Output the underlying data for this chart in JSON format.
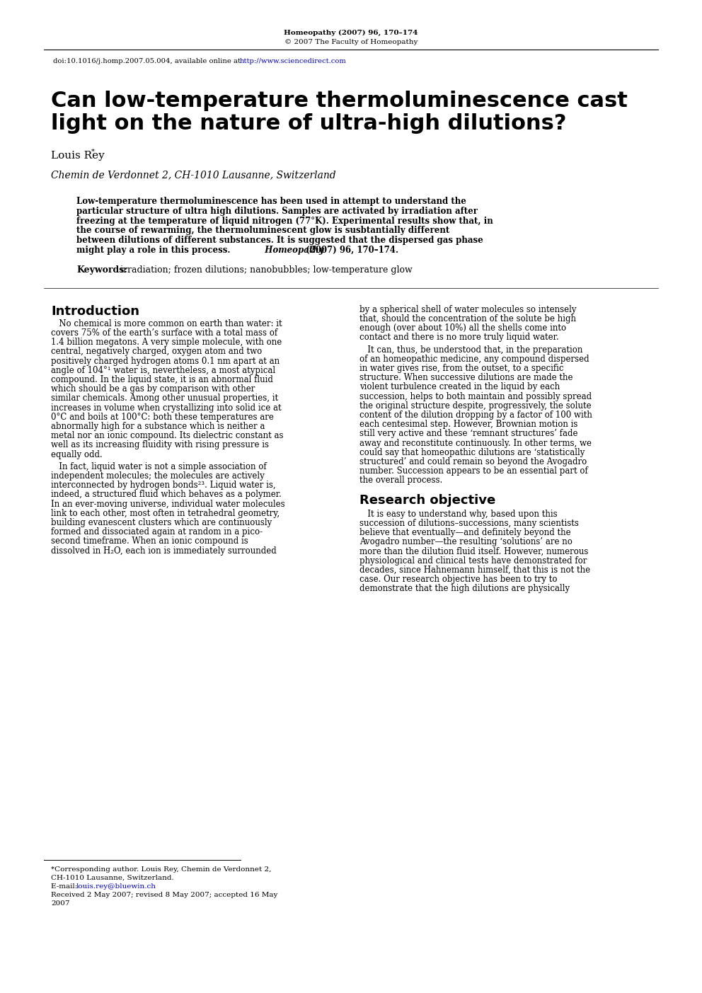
{
  "bg_color": "#ffffff",
  "header_journal": "Homeopathy (2007) 96, 170–174",
  "header_copyright": "© 2007 The Faculty of Homeopathy",
  "doi_text_plain": "doi:10.1016/j.homp.2007.05.004, available online at ",
  "doi_url": "http://www.sciencedirect.com",
  "title_line1": "Can low-temperature thermoluminescence cast",
  "title_line2": "light on the nature of ultra-high dilutions?",
  "author_name": "Louis Rey",
  "affiliation": "Chemin de Verdonnet 2, CH-1010 Lausanne, Switzerland",
  "abs_lines": [
    "Low-temperature thermoluminescence has been used in attempt to understand the",
    "particular structure of ultra high dilutions. Samples are activated by irradiation after",
    "freezing at the temperature of liquid nitrogen (77°K). Experimental results show that, in",
    "the course of rewarming, the thermoluminescent glow is susbtantially different",
    "between dilutions of different substances. It is suggested that the dispersed gas phase",
    "might play a role in this process."
  ],
  "abs_journal_italic": "Homeopathy",
  "abs_journal_rest": " (2007) 96, 170–174.",
  "keywords_label": "Keywords:",
  "keywords_text": " irradiation; frozen dilutions; nanobubbles; low-temperature glow",
  "sec1_title": "Introduction",
  "sec1_c1_p1": [
    "   No chemical is more common on earth than water: it",
    "covers 75% of the earth’s surface with a total mass of",
    "1.4 billion megatons. A very simple molecule, with one",
    "central, negatively charged, oxygen atom and two",
    "positively charged hydrogen atoms 0.1 nm apart at an",
    "angle of 104°¹ water is, nevertheless, a most atypical",
    "compound. In the liquid state, it is an abnormal fluid",
    "which should be a gas by comparison with other",
    "similar chemicals. Among other unusual properties, it",
    "increases in volume when crystallizing into solid ice at",
    "0°C and boils at 100°C: both these temperatures are",
    "abnormally high for a substance which is neither a",
    "metal nor an ionic compound. Its dielectric constant as",
    "well as its increasing fluidity with rising pressure is",
    "equally odd."
  ],
  "sec1_c1_p2": [
    "   In fact, liquid water is not a simple association of",
    "independent molecules; the molecules are actively",
    "interconnected by hydrogen bonds²³. Liquid water is,",
    "indeed, a structured fluid which behaves as a polymer.",
    "In an ever-moving universe, individual water molecules",
    "link to each other, most often in tetrahedral geometry,",
    "building evanescent clusters which are continuously",
    "formed and dissociated again at random in a pico-",
    "second timeframe. When an ionic compound is",
    "dissolved in H₂O, each ion is immediately surrounded"
  ],
  "sec1_c2_p1": [
    "by a spherical shell of water molecules so intensely",
    "that, should the concentration of the solute be high",
    "enough (over about 10%) all the shells come into",
    "contact and there is no more truly liquid water."
  ],
  "sec1_c2_p2": [
    "   It can, thus, be understood that, in the preparation",
    "of an homeopathic medicine, any compound dispersed",
    "in water gives rise, from the outset, to a specific",
    "structure. When successive dilutions are made the",
    "violent turbulence created in the liquid by each",
    "succession, helps to both maintain and possibly spread",
    "the original structure despite, progressively, the solute",
    "content of the dilution dropping by a factor of 100 with",
    "each centesimal step. However, Brownian motion is",
    "still very active and these ‘remnant structures’ fade",
    "away and reconstitute continuously. In other terms, we",
    "could say that homeopathic dilutions are ‘statistically",
    "structured’ and could remain so beyond the Avogadro",
    "number. Succession appears to be an essential part of",
    "the overall process."
  ],
  "sec2_title": "Research objective",
  "sec2_c2_p1": [
    "   It is easy to understand why, based upon this",
    "succession of dilutions–successions, many scientists",
    "believe that eventually—and definitely beyond the",
    "Avogadro number—the resulting ‘solutions’ are no",
    "more than the dilution fluid itself. However, numerous",
    "physiological and clinical tests have demonstrated for",
    "decades, since Hahnemann himself, that this is not the",
    "case. Our research objective has been to try to",
    "demonstrate that the high dilutions are physically"
  ],
  "fn_line1": "*Corresponding author. Louis Rey, Chemin de Verdonnet 2,",
  "fn_line2": "CH-1010 Lausanne, Switzerland.",
  "fn_email_label": "E-mail: ",
  "fn_email": "louis.rey@bluewin.ch",
  "fn_received_1": "Received 2 May 2007; revised 8 May 2007; accepted 16 May",
  "fn_received_2": "2007"
}
